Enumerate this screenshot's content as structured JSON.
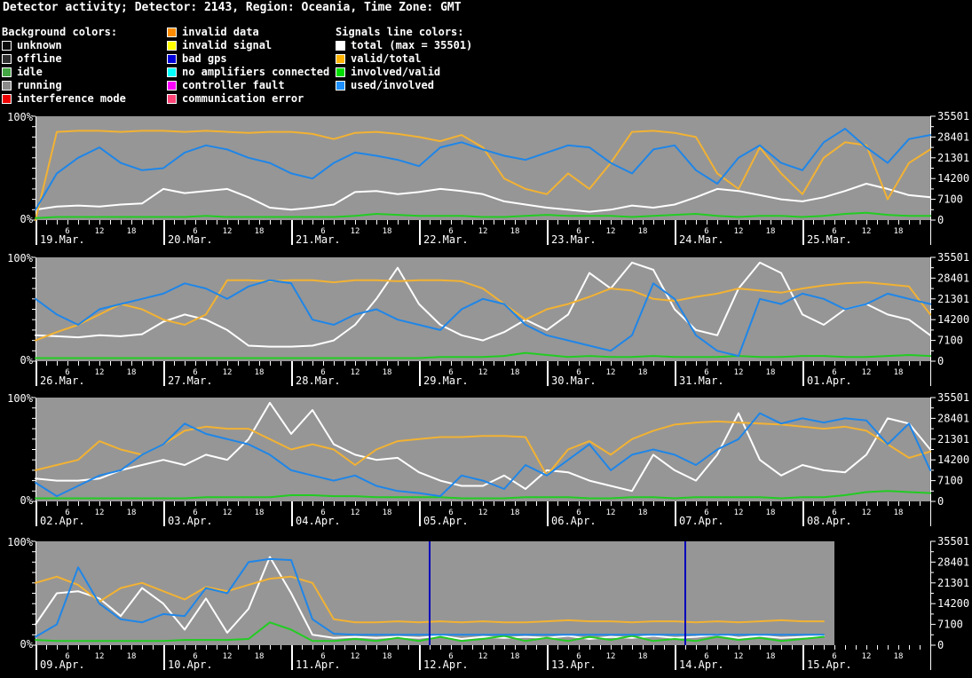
{
  "title": "Detector activity; Detector: 2143, Region: Oceania, Time Zone: GMT",
  "colors": {
    "page_bg": "#000000",
    "plot_bg": "#969696",
    "axis": "#ffffff",
    "text": "#ffffff",
    "event_line": "#0000bb"
  },
  "legend": {
    "columns": [
      {
        "header": "Background colors:",
        "items": [
          {
            "label": "unknown",
            "color": "#0b0b0b"
          },
          {
            "label": "offline",
            "color": "#2e2e2e"
          },
          {
            "label": "idle",
            "color": "#44a544"
          },
          {
            "label": "running",
            "color": "#8a8a8a"
          },
          {
            "label": "interference mode",
            "color": "#ee0000"
          }
        ]
      },
      {
        "header": null,
        "items": [
          {
            "label": "invalid data",
            "color": "#ff8c00"
          },
          {
            "label": "invalid signal",
            "color": "#ffff00"
          },
          {
            "label": "bad gps",
            "color": "#0000dd"
          },
          {
            "label": "no amplifiers connected",
            "color": "#00ffff"
          },
          {
            "label": "controller fault",
            "color": "#ff00ff"
          },
          {
            "label": "communication error",
            "color": "#ff4477"
          }
        ]
      },
      {
        "header": "Signals line colors:",
        "items": [
          {
            "label": "total (max = 35501)",
            "color": "#ffffff"
          },
          {
            "label": "valid/total",
            "color": "#ffb300"
          },
          {
            "label": "involved/valid",
            "color": "#00dd00"
          },
          {
            "label": "used/involved",
            "color": "#1e90ff"
          }
        ]
      }
    ]
  },
  "chart_data": [
    {
      "type": "line",
      "row": 1,
      "days": [
        "19.Mar.",
        "20.Mar.",
        "21.Mar.",
        "22.Mar.",
        "23.Mar.",
        "24.Mar.",
        "25.Mar."
      ],
      "hour_tick_labels": [
        6,
        12,
        18
      ],
      "y_left_labels": [
        "100%",
        "0%"
      ],
      "y_right_labels": [
        "35501",
        "28401",
        "21301",
        "14200",
        "7100",
        "0"
      ],
      "y_right_max": 35501,
      "ylim": [
        0,
        100
      ],
      "hours_per_row": 168,
      "sample_interval_hours": 4,
      "data_end_hour": 168,
      "series": [
        {
          "name": "total",
          "color": "#ffffff",
          "values": [
            10,
            13,
            14,
            13,
            15,
            16,
            30,
            26,
            28,
            30,
            22,
            12,
            10,
            12,
            15,
            27,
            28,
            25,
            27,
            30,
            28,
            25,
            18,
            15,
            12,
            10,
            8,
            10,
            14,
            12,
            15,
            22,
            30,
            28,
            24,
            20,
            18,
            22,
            28,
            35,
            30,
            24,
            22
          ]
        },
        {
          "name": "valid/total",
          "color": "#f2b233",
          "values": [
            0,
            85,
            86,
            86,
            85,
            86,
            86,
            85,
            86,
            85,
            84,
            85,
            85,
            83,
            78,
            84,
            85,
            83,
            80,
            76,
            82,
            70,
            40,
            30,
            25,
            45,
            30,
            55,
            85,
            86,
            84,
            80,
            45,
            30,
            70,
            45,
            25,
            60,
            75,
            72,
            20,
            55,
            68
          ]
        },
        {
          "name": "involved/valid",
          "color": "#22cc22",
          "values": [
            2,
            3,
            3,
            3,
            3,
            3,
            3,
            3,
            4,
            3,
            3,
            3,
            3,
            3,
            3,
            4,
            6,
            5,
            4,
            4,
            4,
            3,
            3,
            4,
            5,
            4,
            4,
            4,
            3,
            4,
            5,
            6,
            4,
            3,
            4,
            4,
            3,
            4,
            6,
            7,
            5,
            4,
            4
          ]
        },
        {
          "name": "used/involved",
          "color": "#1f86e8",
          "values": [
            10,
            45,
            60,
            70,
            55,
            48,
            50,
            65,
            72,
            68,
            60,
            55,
            45,
            40,
            55,
            65,
            62,
            58,
            52,
            70,
            75,
            68,
            62,
            58,
            65,
            72,
            70,
            55,
            45,
            68,
            72,
            48,
            35,
            60,
            72,
            55,
            48,
            75,
            88,
            70,
            55,
            78,
            82
          ]
        }
      ],
      "event_lines": []
    },
    {
      "type": "line",
      "row": 2,
      "days": [
        "26.Mar.",
        "27.Mar.",
        "28.Mar.",
        "29.Mar.",
        "30.Mar.",
        "31.Mar.",
        "01.Apr."
      ],
      "hour_tick_labels": [
        6,
        12,
        18
      ],
      "y_left_labels": [
        "100%",
        "0%"
      ],
      "y_right_labels": [
        "35501",
        "28401",
        "21301",
        "14200",
        "7100",
        "0"
      ],
      "y_right_max": 35501,
      "ylim": [
        0,
        100
      ],
      "hours_per_row": 168,
      "sample_interval_hours": 4,
      "data_end_hour": 168,
      "series": [
        {
          "name": "total",
          "color": "#ffffff",
          "values": [
            25,
            24,
            23,
            25,
            24,
            26,
            38,
            45,
            40,
            30,
            15,
            14,
            14,
            15,
            20,
            35,
            60,
            90,
            55,
            35,
            25,
            20,
            28,
            40,
            30,
            45,
            85,
            70,
            95,
            88,
            50,
            30,
            25,
            70,
            95,
            85,
            45,
            35,
            50,
            55,
            45,
            40,
            25
          ]
        },
        {
          "name": "valid/total",
          "color": "#f2b233",
          "values": [
            20,
            28,
            35,
            45,
            55,
            50,
            40,
            35,
            45,
            78,
            78,
            77,
            78,
            78,
            76,
            78,
            78,
            77,
            78,
            78,
            77,
            70,
            55,
            40,
            50,
            55,
            62,
            70,
            68,
            60,
            58,
            62,
            65,
            70,
            68,
            66,
            70,
            73,
            75,
            76,
            74,
            72,
            45
          ]
        },
        {
          "name": "involved/valid",
          "color": "#22cc22",
          "values": [
            3,
            3,
            3,
            3,
            3,
            3,
            3,
            3,
            3,
            3,
            3,
            3,
            3,
            3,
            3,
            3,
            3,
            3,
            3,
            4,
            4,
            4,
            5,
            8,
            6,
            4,
            5,
            4,
            4,
            5,
            4,
            4,
            4,
            5,
            4,
            4,
            5,
            5,
            4,
            4,
            5,
            6,
            5
          ]
        },
        {
          "name": "used/involved",
          "color": "#1f86e8",
          "values": [
            60,
            45,
            35,
            50,
            55,
            60,
            65,
            75,
            70,
            60,
            72,
            78,
            75,
            40,
            35,
            45,
            50,
            40,
            35,
            30,
            50,
            60,
            55,
            35,
            25,
            20,
            15,
            10,
            25,
            75,
            60,
            25,
            10,
            5,
            60,
            55,
            65,
            60,
            50,
            55,
            65,
            60,
            55
          ]
        }
      ],
      "event_lines": []
    },
    {
      "type": "line",
      "row": 3,
      "days": [
        "02.Apr.",
        "03.Apr.",
        "04.Apr.",
        "05.Apr.",
        "06.Apr.",
        "07.Apr.",
        "08.Apr."
      ],
      "hour_tick_labels": [
        6,
        12,
        18
      ],
      "y_left_labels": [
        "100%",
        "0%"
      ],
      "y_right_labels": [
        "35501",
        "28401",
        "21301",
        "14200",
        "7100",
        "0"
      ],
      "y_right_max": 35501,
      "ylim": [
        0,
        100
      ],
      "hours_per_row": 168,
      "sample_interval_hours": 4,
      "data_end_hour": 168,
      "series": [
        {
          "name": "total",
          "color": "#ffffff",
          "values": [
            22,
            20,
            20,
            22,
            30,
            35,
            40,
            35,
            45,
            40,
            60,
            95,
            65,
            88,
            55,
            45,
            40,
            42,
            28,
            20,
            15,
            15,
            25,
            12,
            30,
            28,
            20,
            15,
            10,
            45,
            30,
            20,
            45,
            85,
            40,
            25,
            35,
            30,
            28,
            45,
            80,
            75,
            50
          ]
        },
        {
          "name": "valid/total",
          "color": "#f2b233",
          "values": [
            30,
            35,
            40,
            58,
            50,
            45,
            55,
            68,
            72,
            70,
            70,
            60,
            50,
            55,
            50,
            35,
            50,
            58,
            60,
            62,
            62,
            63,
            63,
            62,
            25,
            50,
            58,
            45,
            60,
            68,
            74,
            76,
            77,
            76,
            75,
            74,
            72,
            70,
            72,
            68,
            55,
            42,
            48
          ]
        },
        {
          "name": "involved/valid",
          "color": "#22cc22",
          "values": [
            3,
            3,
            3,
            3,
            3,
            3,
            3,
            3,
            4,
            4,
            4,
            4,
            6,
            6,
            5,
            5,
            4,
            4,
            4,
            4,
            3,
            3,
            3,
            4,
            4,
            4,
            3,
            3,
            4,
            4,
            3,
            4,
            4,
            4,
            4,
            3,
            4,
            4,
            6,
            9,
            10,
            9,
            8
          ]
        },
        {
          "name": "used/involved",
          "color": "#1f86e8",
          "values": [
            18,
            5,
            15,
            25,
            30,
            45,
            55,
            75,
            65,
            60,
            55,
            45,
            30,
            25,
            20,
            25,
            15,
            10,
            8,
            5,
            25,
            20,
            12,
            35,
            25,
            40,
            55,
            30,
            45,
            50,
            45,
            35,
            50,
            60,
            85,
            75,
            80,
            76,
            80,
            78,
            55,
            75,
            30
          ]
        }
      ],
      "event_lines": []
    },
    {
      "type": "line",
      "row": 4,
      "days": [
        "09.Apr.",
        "10.Apr.",
        "11.Apr.",
        "12.Apr.",
        "13.Apr.",
        "14.Apr.",
        "15.Apr."
      ],
      "hour_tick_labels": [
        6,
        12,
        18
      ],
      "y_left_labels": [
        "100%",
        "0%"
      ],
      "y_right_labels": [
        "35501",
        "28401",
        "21301",
        "14200",
        "7100",
        "0"
      ],
      "y_right_max": 35501,
      "ylim": [
        0,
        100
      ],
      "hours_per_row": 168,
      "sample_interval_hours": 4,
      "data_end_hour": 150,
      "series": [
        {
          "name": "total",
          "color": "#ffffff",
          "values": [
            20,
            50,
            52,
            45,
            28,
            55,
            40,
            15,
            45,
            12,
            35,
            85,
            50,
            10,
            7,
            8,
            7,
            8,
            7,
            9,
            6,
            8,
            7,
            8,
            7,
            9,
            6,
            8,
            7,
            9,
            7,
            8,
            10,
            7,
            9,
            7,
            8,
            9
          ]
        },
        {
          "name": "valid/total",
          "color": "#f2b233",
          "values": [
            60,
            66,
            58,
            42,
            55,
            60,
            52,
            44,
            56,
            52,
            58,
            64,
            66,
            60,
            25,
            22,
            22,
            23,
            22,
            23,
            22,
            23,
            22,
            22,
            23,
            24,
            23,
            23,
            22,
            23,
            23,
            22,
            23,
            22,
            23,
            24,
            23,
            23
          ]
        },
        {
          "name": "involved/valid",
          "color": "#22cc22",
          "values": [
            5,
            4,
            4,
            4,
            4,
            4,
            4,
            5,
            5,
            5,
            6,
            22,
            15,
            4,
            4,
            6,
            4,
            7,
            4,
            8,
            4,
            6,
            9,
            4,
            7,
            4,
            8,
            5,
            9,
            4,
            6,
            4,
            8,
            5,
            7,
            4,
            6,
            8
          ]
        },
        {
          "name": "used/involved",
          "color": "#1f86e8",
          "values": [
            8,
            20,
            75,
            40,
            25,
            22,
            30,
            28,
            55,
            50,
            80,
            83,
            82,
            25,
            11,
            10,
            10,
            10,
            10,
            10,
            10,
            10,
            10,
            10,
            10,
            10,
            10,
            10,
            10,
            10,
            10,
            10,
            10,
            10,
            10,
            10,
            10,
            10
          ]
        }
      ],
      "event_lines": [
        {
          "hour": 74,
          "label": "bad gps"
        },
        {
          "hour": 122,
          "label": "bad gps"
        }
      ]
    }
  ]
}
